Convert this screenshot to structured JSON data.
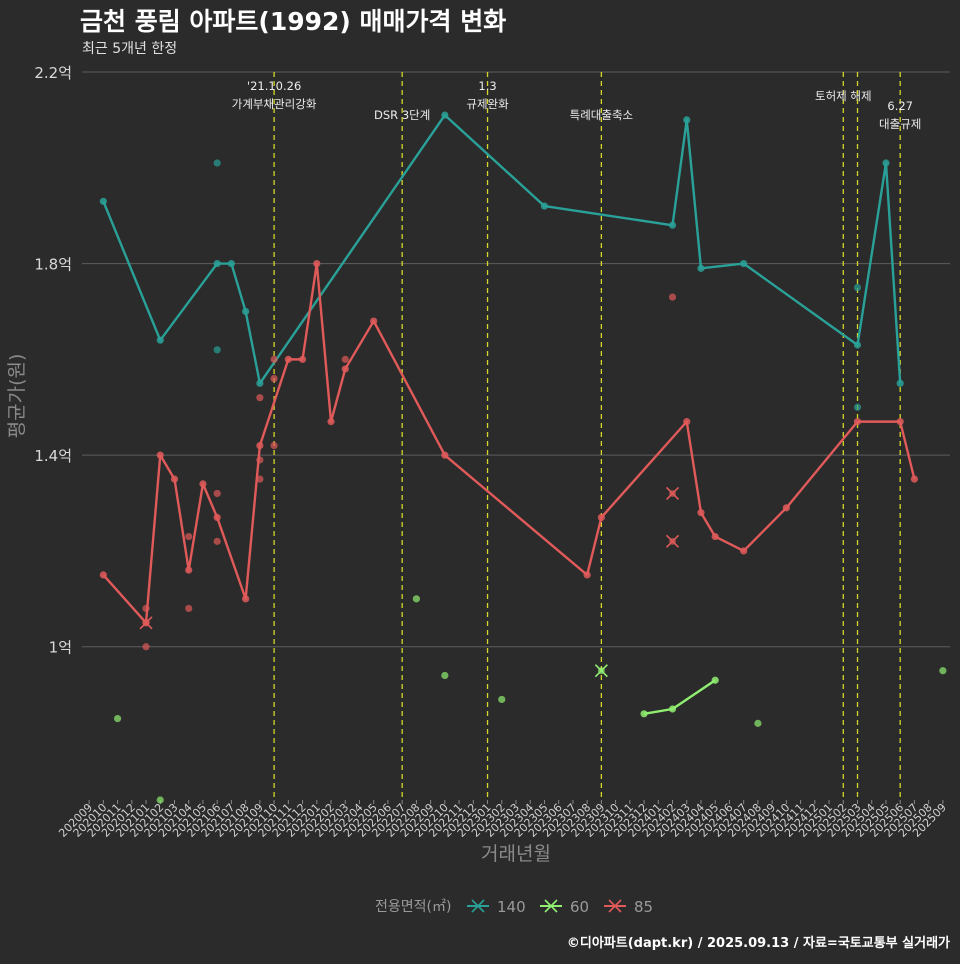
{
  "chart_data": {
    "type": "line",
    "title": "금천 풍림 아파트(1992) 매매가격 변화",
    "subtitle": "최근 5개년 한정",
    "xlabel": "거래년월",
    "ylabel": "평균가(원)",
    "ylim": [
      0.68,
      2.2
    ],
    "y_ticks": [
      {
        "value": 1.0,
        "label": "1억"
      },
      {
        "value": 1.4,
        "label": "1.4억"
      },
      {
        "value": 1.8,
        "label": "1.8억"
      },
      {
        "value": 2.2,
        "label": "2.2억"
      }
    ],
    "categories": [
      "202009",
      "202010",
      "202011",
      "202012",
      "202101",
      "202102",
      "202103",
      "202104",
      "202105",
      "202106",
      "202107",
      "202108",
      "202109",
      "202110",
      "202111",
      "202112",
      "202201",
      "202202",
      "202203",
      "202204",
      "202205",
      "202206",
      "202207",
      "202208",
      "202209",
      "202210",
      "202211",
      "202212",
      "202301",
      "202302",
      "202303",
      "202304",
      "202305",
      "202306",
      "202307",
      "202308",
      "202309",
      "202310",
      "202311",
      "202312",
      "202401",
      "202402",
      "202403",
      "202404",
      "202405",
      "202406",
      "202407",
      "202408",
      "202409",
      "202410",
      "202411",
      "202412",
      "202501",
      "202502",
      "202503",
      "202504",
      "202505",
      "202506",
      "202507",
      "202508",
      "202509"
    ],
    "legend_title": "전용면적(㎡)",
    "series": [
      {
        "name": "140",
        "color": "#2aa198",
        "line": [
          [
            "202010",
            1.93
          ],
          [
            "202102",
            1.64
          ],
          [
            "202106",
            1.8
          ],
          [
            "202107",
            1.8
          ],
          [
            "202108",
            1.7
          ],
          [
            "202109",
            1.55
          ],
          [
            "202210",
            2.11
          ],
          [
            "202305",
            1.92
          ],
          [
            "202402",
            1.88
          ],
          [
            "202403",
            2.1
          ],
          [
            "202404",
            1.79
          ],
          [
            "202407",
            1.8
          ],
          [
            "202503",
            1.63
          ],
          [
            "202505",
            2.01
          ],
          [
            "202506",
            1.55
          ]
        ],
        "points": [
          [
            "202106",
            2.01
          ],
          [
            "202106",
            1.62
          ],
          [
            "202503",
            1.75
          ],
          [
            "202503",
            1.5
          ]
        ],
        "crosses": []
      },
      {
        "name": "60",
        "color": "#90ee70",
        "line": [
          [
            "202312",
            0.86
          ],
          [
            "202402",
            0.87
          ],
          [
            "202405",
            0.93
          ]
        ],
        "points": [
          [
            "202011",
            0.85
          ],
          [
            "202102",
            0.68
          ],
          [
            "202208",
            1.1
          ],
          [
            "202210",
            0.94
          ],
          [
            "202302",
            0.89
          ],
          [
            "202408",
            0.84
          ],
          [
            "202509",
            0.95
          ]
        ],
        "crosses": [
          [
            "202309",
            0.95
          ]
        ]
      },
      {
        "name": "85",
        "color": "#e05a5a",
        "line": [
          [
            "202010",
            1.15
          ],
          [
            "202101",
            1.05
          ],
          [
            "202102",
            1.4
          ],
          [
            "202103",
            1.35
          ],
          [
            "202104",
            1.16
          ],
          [
            "202105",
            1.34
          ],
          [
            "202106",
            1.27
          ],
          [
            "202108",
            1.1
          ],
          [
            "202109",
            1.42
          ],
          [
            "202111",
            1.6
          ],
          [
            "202112",
            1.6
          ],
          [
            "202201",
            1.8
          ],
          [
            "202202",
            1.47
          ],
          [
            "202203",
            1.58
          ],
          [
            "202205",
            1.68
          ],
          [
            "202210",
            1.4
          ],
          [
            "202308",
            1.15
          ],
          [
            "202309",
            1.27
          ],
          [
            "202403",
            1.47
          ],
          [
            "202404",
            1.28
          ],
          [
            "202405",
            1.23
          ],
          [
            "202407",
            1.2
          ],
          [
            "202410",
            1.29
          ],
          [
            "202503",
            1.47
          ],
          [
            "202506",
            1.47
          ],
          [
            "202507",
            1.35
          ]
        ],
        "points": [
          [
            "202101",
            1.08
          ],
          [
            "202101",
            1.0
          ],
          [
            "202104",
            1.23
          ],
          [
            "202104",
            1.08
          ],
          [
            "202106",
            1.32
          ],
          [
            "202106",
            1.22
          ],
          [
            "202109",
            1.52
          ],
          [
            "202109",
            1.39
          ],
          [
            "202109",
            1.35
          ],
          [
            "202110",
            1.6
          ],
          [
            "202110",
            1.56
          ],
          [
            "202110",
            1.42
          ],
          [
            "202203",
            1.6
          ],
          [
            "202402",
            1.73
          ]
        ],
        "crosses": [
          [
            "202101",
            1.05
          ],
          [
            "202402",
            1.32
          ],
          [
            "202402",
            1.22
          ]
        ]
      }
    ],
    "annotations": [
      {
        "x": "202110",
        "lines": [
          "'21.10.26",
          "가계부채관리강화"
        ],
        "level": 0
      },
      {
        "x": "202207",
        "lines": [
          "DSR 3단계"
        ],
        "level": 2
      },
      {
        "x": "202301",
        "lines": [
          "1.3",
          "규제완화"
        ],
        "level": 0
      },
      {
        "x": "202309",
        "lines": [
          "특례대출축소"
        ],
        "level": 2
      },
      {
        "x": "202502",
        "lines": [
          "토허제 해제"
        ],
        "level": 1
      },
      {
        "x": "202503",
        "lines": [],
        "level": 1
      },
      {
        "x": "202506",
        "lines": [
          "6.27",
          "대출규제"
        ],
        "level": 3
      }
    ],
    "footer": "©디아파트(dapt.kr) / 2025.09.13 / 자료=국토교통부 실거래가"
  }
}
